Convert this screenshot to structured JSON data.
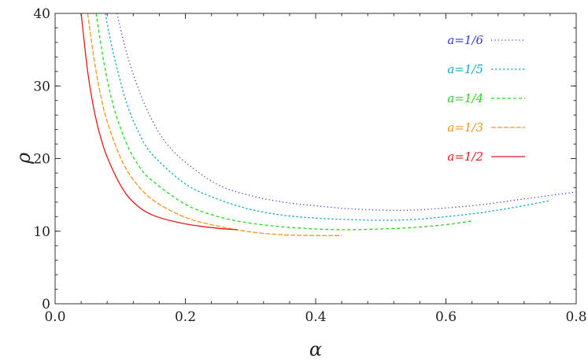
{
  "chart_data": {
    "type": "line",
    "title": "",
    "xlabel": "α",
    "ylabel": "ρ",
    "xlim": [
      0.0,
      0.8
    ],
    "ylim": [
      0,
      40
    ],
    "xticks": [
      0.0,
      0.2,
      0.4,
      0.6,
      0.8
    ],
    "xtick_labels": [
      "0.0",
      "0.2",
      "0.4",
      "0.6",
      "0.8"
    ],
    "yticks": [
      0,
      10,
      20,
      30,
      40
    ],
    "ytick_labels": [
      "0",
      "10",
      "20",
      "30",
      "40"
    ],
    "grid": false,
    "legend_position": "top-right",
    "series": [
      {
        "name": "a=1/6",
        "color": "#3a3ad0",
        "dash": "dotted",
        "x": [
          0.095,
          0.11,
          0.13,
          0.15,
          0.17,
          0.2,
          0.25,
          0.3,
          0.35,
          0.4,
          0.45,
          0.5,
          0.55,
          0.6,
          0.65,
          0.7,
          0.75,
          0.8
        ],
        "y": [
          40,
          34.5,
          29.1,
          25.1,
          22.2,
          19.5,
          16.4,
          14.9,
          14.0,
          13.5,
          13.1,
          12.9,
          12.9,
          13.2,
          13.6,
          14.2,
          14.8,
          15.4
        ]
      },
      {
        "name": "a=1/5",
        "color": "#1aa8c8",
        "dash": "short-dash",
        "x": [
          0.077,
          0.09,
          0.11,
          0.13,
          0.15,
          0.2,
          0.25,
          0.3,
          0.35,
          0.4,
          0.45,
          0.5,
          0.55,
          0.6,
          0.65,
          0.7,
          0.76
        ],
        "y": [
          40,
          34.3,
          27.6,
          23.3,
          20.5,
          16.5,
          14.4,
          13.0,
          12.2,
          11.8,
          11.6,
          11.5,
          11.6,
          12.0,
          12.5,
          13.2,
          14.2
        ]
      },
      {
        "name": "a=1/4",
        "color": "#22d822",
        "dash": "dashed",
        "x": [
          0.063,
          0.075,
          0.09,
          0.11,
          0.13,
          0.15,
          0.2,
          0.25,
          0.3,
          0.35,
          0.4,
          0.45,
          0.5,
          0.55,
          0.6,
          0.64
        ],
        "y": [
          40,
          33.2,
          27.1,
          22.0,
          18.8,
          16.9,
          13.7,
          12.0,
          11.1,
          10.6,
          10.3,
          10.2,
          10.3,
          10.5,
          10.9,
          11.4
        ]
      },
      {
        "name": "a=1/3",
        "color": "#f0961e",
        "dash": "long-dash",
        "x": [
          0.05,
          0.06,
          0.07,
          0.08,
          0.1,
          0.12,
          0.15,
          0.2,
          0.25,
          0.3,
          0.35,
          0.4,
          0.44
        ],
        "y": [
          40,
          33.6,
          28.7,
          25.1,
          20.2,
          17.1,
          14.3,
          11.9,
          10.7,
          9.9,
          9.5,
          9.4,
          9.4
        ]
      },
      {
        "name": "a=1/2",
        "color": "#e01a1a",
        "dash": "solid",
        "x": [
          0.04,
          0.05,
          0.06,
          0.07,
          0.08,
          0.1,
          0.12,
          0.15,
          0.2,
          0.25,
          0.28
        ],
        "y": [
          40,
          32.0,
          26.6,
          22.9,
          20.2,
          16.4,
          14.0,
          12.2,
          11.0,
          10.4,
          10.2
        ]
      }
    ]
  }
}
